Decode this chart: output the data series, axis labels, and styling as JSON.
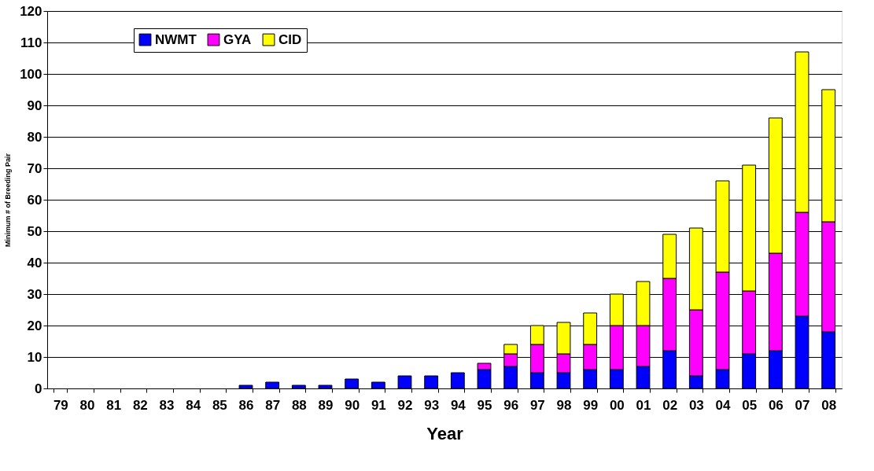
{
  "chart_data": {
    "type": "bar",
    "stacked": true,
    "xlabel": "Year",
    "ylabel": "Minimum # of Breeding Pair",
    "categories": [
      "79",
      "80",
      "81",
      "82",
      "83",
      "84",
      "85",
      "86",
      "87",
      "88",
      "89",
      "90",
      "91",
      "92",
      "93",
      "94",
      "95",
      "96",
      "97",
      "98",
      "99",
      "00",
      "01",
      "02",
      "03",
      "04",
      "05",
      "06",
      "07",
      "08"
    ],
    "series": [
      {
        "name": "NWMT",
        "color": "#0000ff",
        "values": [
          null,
          null,
          null,
          null,
          null,
          null,
          null,
          1,
          2,
          1,
          1,
          3,
          2,
          4,
          4,
          5,
          6,
          7,
          5,
          5,
          6,
          6,
          7,
          12,
          4,
          6,
          11,
          12,
          23,
          18
        ]
      },
      {
        "name": "GYA",
        "color": "#ff00ff",
        "values": [
          null,
          null,
          null,
          null,
          null,
          null,
          null,
          null,
          null,
          null,
          null,
          null,
          null,
          null,
          null,
          null,
          2,
          4,
          9,
          6,
          8,
          14,
          13,
          23,
          21,
          31,
          20,
          31,
          33,
          35
        ]
      },
      {
        "name": "CID",
        "color": "#ffff00",
        "values": [
          null,
          null,
          null,
          null,
          null,
          null,
          null,
          null,
          null,
          null,
          null,
          null,
          null,
          null,
          null,
          null,
          null,
          3,
          6,
          10,
          10,
          10,
          14,
          14,
          26,
          29,
          40,
          43,
          51,
          42
        ]
      }
    ],
    "ylim": [
      0,
      120
    ],
    "yticks": [
      0,
      10,
      20,
      30,
      40,
      50,
      60,
      70,
      80,
      90,
      100,
      110,
      120
    ],
    "grid": "y",
    "legend": "top left"
  }
}
